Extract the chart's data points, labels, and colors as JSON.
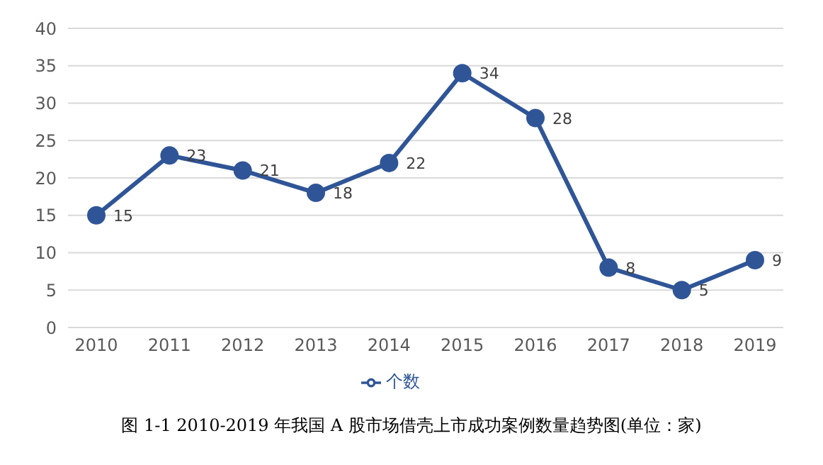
{
  "chart_data": {
    "type": "line",
    "categories": [
      "2010",
      "2011",
      "2012",
      "2013",
      "2014",
      "2015",
      "2016",
      "2017",
      "2018",
      "2019"
    ],
    "series": [
      {
        "name": "个数",
        "color": "#2f5597",
        "values": [
          15,
          23,
          21,
          18,
          22,
          34,
          28,
          8,
          5,
          9
        ]
      }
    ],
    "ylim": [
      0,
      40
    ],
    "yticks": [
      0,
      5,
      10,
      15,
      20,
      25,
      30,
      35,
      40
    ],
    "grid": "y",
    "legend": "bottom",
    "marker": "circle",
    "line_style": "solid",
    "data_labels": true,
    "annotations": [
      "图 1-1 2010-2019 年我国 A 股市场借壳上市成功案例数量趋势图(单位：家)"
    ]
  }
}
